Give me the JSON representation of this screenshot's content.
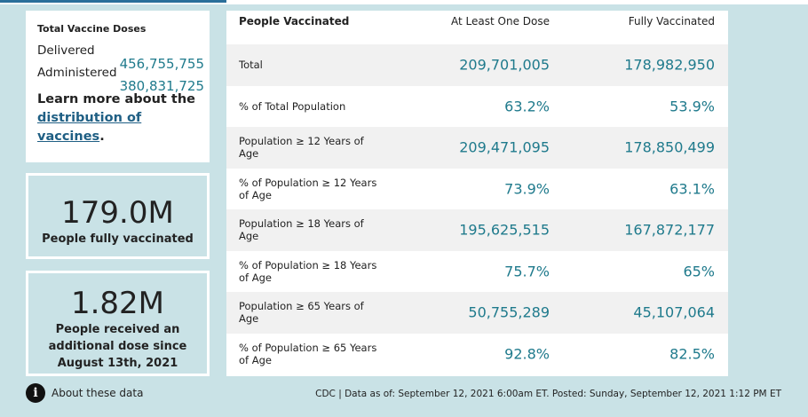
{
  "doses": {
    "title": "Total Vaccine Doses",
    "delivered_label": "Delivered",
    "delivered_value": "456,755,755",
    "administered_label": "Administered",
    "administered_value": "380,831,725",
    "learn_prefix": "Learn more about the",
    "learn_link": "distribution of vaccines",
    "learn_suffix": "."
  },
  "stats": {
    "fully_value": "179.0M",
    "fully_caption": "People fully vaccinated",
    "additional_value": "1.82M",
    "additional_caption": "People received an additional dose since August 13th, 2021"
  },
  "table": {
    "headers": [
      "People Vaccinated",
      "At Least One Dose",
      "Fully Vaccinated"
    ],
    "rows": [
      {
        "label": "Total",
        "one_dose": "209,701,005",
        "fully": "178,982,950"
      },
      {
        "label": "% of Total Population",
        "one_dose": "63.2%",
        "fully": "53.9%"
      },
      {
        "label": "Population ≥ 12 Years of Age",
        "one_dose": "209,471,095",
        "fully": "178,850,499"
      },
      {
        "label": "% of Population ≥ 12 Years of Age",
        "one_dose": "73.9%",
        "fully": "63.1%"
      },
      {
        "label": "Population ≥ 18 Years of Age",
        "one_dose": "195,625,515",
        "fully": "167,872,177"
      },
      {
        "label": "% of Population ≥ 18 Years of Age",
        "one_dose": "75.7%",
        "fully": "65%"
      },
      {
        "label": "Population ≥ 65 Years of Age",
        "one_dose": "50,755,289",
        "fully": "45,107,064"
      },
      {
        "label": "% of Population ≥ 65 Years of Age",
        "one_dose": "92.8%",
        "fully": "82.5%"
      }
    ]
  },
  "footer": {
    "about_label": "About these data",
    "info_icon": "info-icon",
    "source_text": "CDC | Data as of: September 12, 2021 6:00am ET. Posted: Sunday, September 12, 2021 1:12 PM ET"
  },
  "colors": {
    "background": "#c9e2e6",
    "value_teal": "#1f7a8c",
    "link_blue": "#1f5f84"
  }
}
